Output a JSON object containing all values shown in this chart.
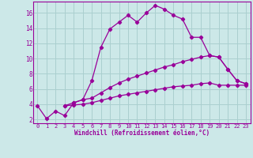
{
  "xlabel": "Windchill (Refroidissement éolien,°C)",
  "background_color": "#cce8e8",
  "line_color": "#990099",
  "grid_color": "#aacfcf",
  "xlim": [
    -0.5,
    23.5
  ],
  "ylim": [
    1.5,
    17.5
  ],
  "xtick_vals": [
    0,
    1,
    2,
    3,
    4,
    5,
    6,
    7,
    8,
    9,
    10,
    11,
    12,
    13,
    14,
    15,
    16,
    17,
    18,
    19,
    20,
    21,
    22,
    23
  ],
  "ytick_vals": [
    2,
    4,
    6,
    8,
    10,
    12,
    14,
    16
  ],
  "series1_x": [
    0,
    1,
    2,
    3,
    4,
    5,
    6,
    7,
    8,
    9,
    10,
    11,
    12,
    13,
    14,
    15,
    16,
    17,
    18,
    19,
    20,
    21,
    22,
    23
  ],
  "series1_y": [
    3.8,
    2.1,
    3.1,
    2.5,
    4.2,
    4.6,
    7.1,
    11.5,
    13.9,
    14.8,
    15.7,
    14.8,
    16.0,
    17.0,
    16.5,
    15.7,
    15.2,
    12.8,
    12.8,
    10.4,
    10.2,
    8.6,
    7.1,
    6.7
  ],
  "series2_x": [
    3,
    4,
    5,
    6,
    7,
    8,
    9,
    10,
    11,
    12,
    13,
    14,
    15,
    16,
    17,
    18,
    19,
    20,
    21,
    22,
    23
  ],
  "series2_y": [
    3.8,
    4.2,
    4.6,
    4.8,
    5.5,
    6.2,
    6.8,
    7.3,
    7.7,
    8.1,
    8.5,
    8.9,
    9.2,
    9.6,
    9.9,
    10.2,
    10.4,
    10.2,
    8.6,
    7.1,
    6.7
  ],
  "series3_x": [
    3,
    4,
    5,
    6,
    7,
    8,
    9,
    10,
    11,
    12,
    13,
    14,
    15,
    16,
    17,
    18,
    19,
    20,
    21,
    22,
    23
  ],
  "series3_y": [
    3.8,
    3.9,
    4.0,
    4.2,
    4.5,
    4.8,
    5.1,
    5.3,
    5.5,
    5.7,
    5.9,
    6.1,
    6.3,
    6.4,
    6.5,
    6.7,
    6.8,
    6.5,
    6.5,
    6.5,
    6.5
  ],
  "marker": "D",
  "markersize": 2.2,
  "linewidth": 0.9
}
